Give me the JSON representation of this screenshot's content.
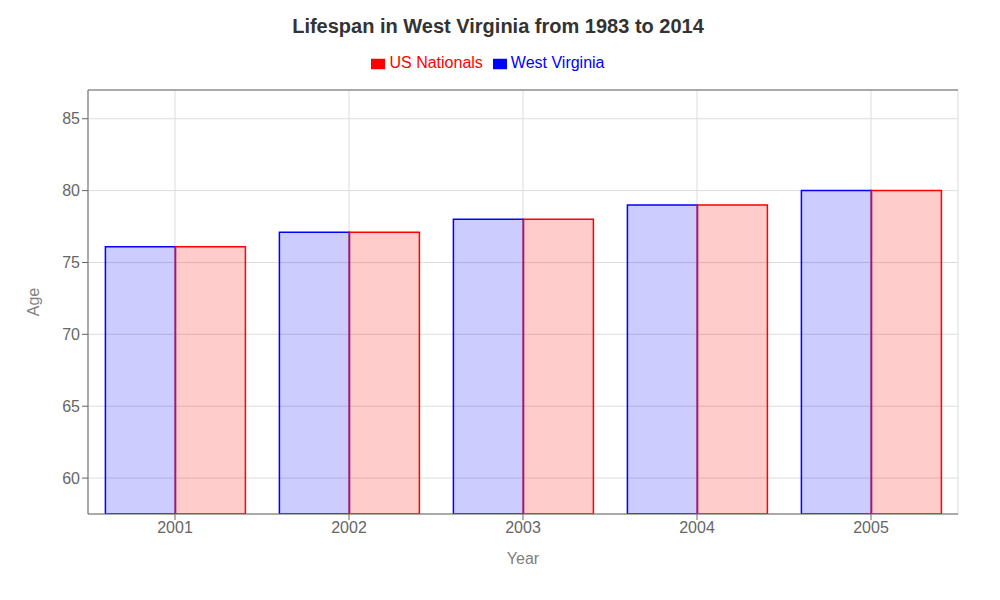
{
  "chart_data": {
    "type": "bar",
    "title": "Lifespan in West Virginia from 1983 to 2014",
    "xlabel": "Year",
    "ylabel": "Age",
    "categories": [
      "2001",
      "2002",
      "2003",
      "2004",
      "2005"
    ],
    "series": [
      {
        "name": "West Virginia",
        "color": "#0000ff",
        "values": [
          76.1,
          77.1,
          78.0,
          79.0,
          80.0
        ]
      },
      {
        "name": "US Nationals",
        "color": "#ff0000",
        "values": [
          76.1,
          77.1,
          78.0,
          79.0,
          80.0
        ]
      }
    ],
    "ylim": [
      57.5,
      87
    ],
    "yticks": [
      60,
      65,
      70,
      75,
      80,
      85
    ],
    "grid": true,
    "legend": "top"
  }
}
